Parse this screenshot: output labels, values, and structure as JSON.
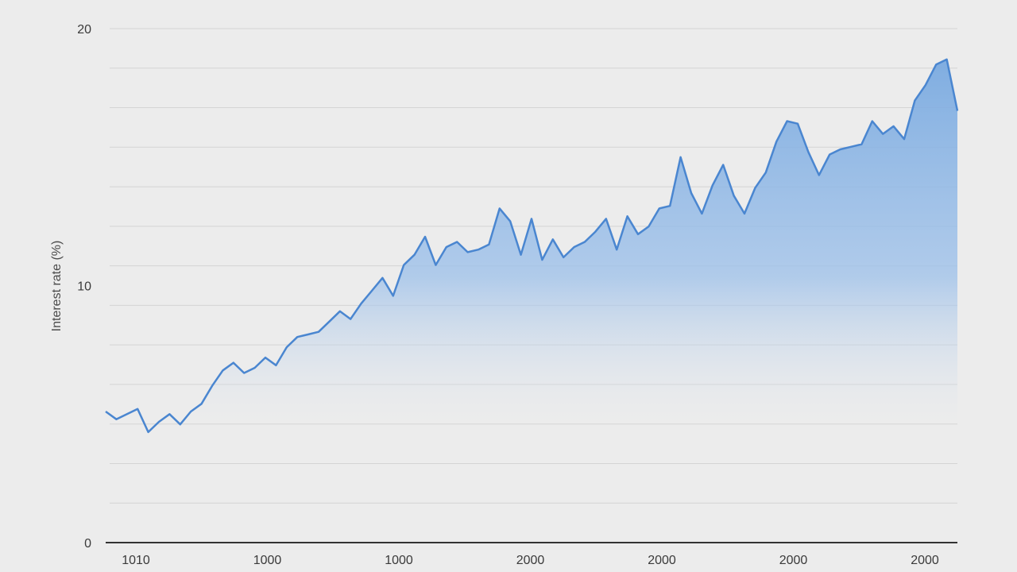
{
  "chart_data": {
    "type": "area",
    "title": "",
    "xlabel": "",
    "ylabel": "Interest rate (%)",
    "ylim": [
      0,
      20
    ],
    "yticks": [
      {
        "value": 0,
        "label": "0"
      },
      {
        "value": 10,
        "label": "10"
      },
      {
        "value": 20,
        "label": "20"
      }
    ],
    "xtick_labels": [
      "1010",
      "1000",
      "1000",
      "2000",
      "2000",
      "2000",
      "2000"
    ],
    "grid": true,
    "colors": {
      "line": "#4a86d0",
      "fill_top": "#7aaae0",
      "fill_bottom": "#ececec",
      "grid": "#d4d4d4",
      "axis": "#333333"
    },
    "series": [
      {
        "values": [
          5.1,
          4.8,
          5.0,
          5.2,
          4.3,
          4.7,
          5.0,
          4.6,
          5.1,
          5.4,
          6.1,
          6.7,
          7.0,
          6.6,
          6.8,
          7.2,
          6.9,
          7.6,
          8.0,
          8.1,
          8.2,
          8.6,
          9.0,
          8.7,
          9.3,
          9.8,
          10.3,
          9.6,
          10.8,
          11.2,
          11.9,
          10.8,
          11.5,
          11.7,
          11.3,
          11.4,
          11.6,
          13.0,
          12.5,
          11.2,
          12.6,
          11.0,
          11.8,
          11.1,
          11.5,
          11.7,
          12.1,
          12.6,
          11.4,
          12.7,
          12.0,
          12.3,
          13.0,
          13.1,
          15.0,
          13.6,
          12.8,
          13.9,
          14.7,
          13.5,
          12.8,
          13.8,
          14.4,
          15.6,
          16.4,
          16.3,
          15.2,
          14.3,
          15.1,
          15.3,
          15.4,
          15.5,
          16.4,
          15.9,
          16.2,
          15.7,
          17.2,
          17.8,
          18.6,
          18.8,
          16.8
        ]
      }
    ]
  }
}
